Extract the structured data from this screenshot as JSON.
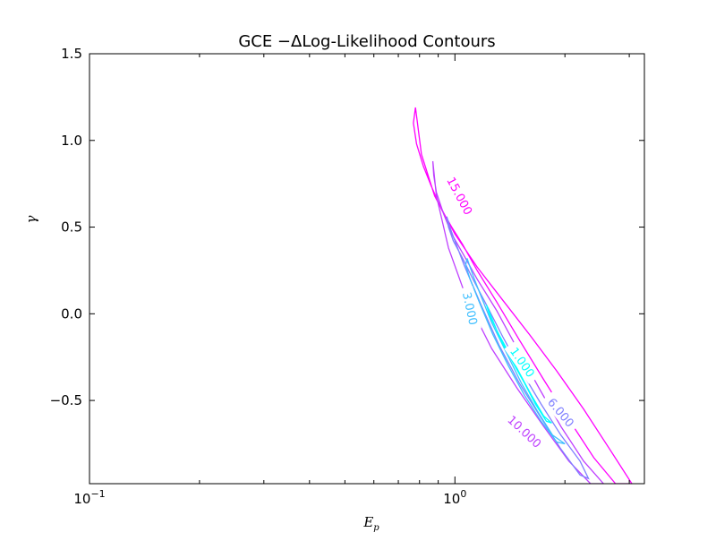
{
  "chart_data": {
    "type": "contour",
    "title": "GCE −ΔLog-Likelihood Contours",
    "xlabel": "E",
    "xlabel_sub": "p",
    "ylabel": "γ",
    "xscale": "log",
    "xlim": [
      0.1,
      3.3
    ],
    "ylim": [
      -0.98,
      1.5
    ],
    "xticks": [
      {
        "value": 0.1,
        "base": "10",
        "exp": "−1"
      },
      {
        "value": 1.0,
        "base": "10",
        "exp": "0"
      }
    ],
    "yticks": [
      {
        "value": 1.5,
        "label": "1.5"
      },
      {
        "value": 1.0,
        "label": "1.0"
      },
      {
        "value": 0.5,
        "label": "0.5"
      },
      {
        "value": 0.0,
        "label": "0.0"
      },
      {
        "value": -0.5,
        "label": "−0.5"
      }
    ],
    "grid": false,
    "levels": [
      {
        "level": "15.000",
        "color": "#ff00ff",
        "label": "15.000",
        "label_at": {
          "x": 1.03,
          "y": 0.68,
          "angle": 62
        },
        "x": [
          0.78,
          0.77,
          0.785,
          0.82,
          0.86,
          0.92,
          0.98,
          1.05,
          1.15,
          1.3,
          1.5,
          1.75,
          2.05,
          2.4,
          2.75,
          3.05,
          2.65,
          2.25,
          1.9,
          1.6,
          1.35,
          1.15,
          1.0,
          0.88,
          0.81,
          0.78
        ],
        "y": [
          1.19,
          1.1,
          0.98,
          0.85,
          0.74,
          0.6,
          0.5,
          0.4,
          0.25,
          0.07,
          -0.15,
          -0.38,
          -0.61,
          -0.83,
          -0.98,
          -0.98,
          -0.78,
          -0.55,
          -0.33,
          -0.12,
          0.08,
          0.27,
          0.46,
          0.68,
          0.92,
          1.19
        ]
      },
      {
        "level": "10.000",
        "color": "#bf40ff",
        "label": "10.000",
        "label_at": {
          "x": 1.55,
          "y": -0.68,
          "angle": 43
        },
        "x": [
          0.87,
          0.875,
          0.89,
          0.93,
          0.98,
          1.05,
          1.15,
          1.3,
          1.48,
          1.7,
          1.95,
          2.25,
          2.55,
          2.35,
          2.05,
          1.75,
          1.48,
          1.26,
          1.08,
          0.96,
          0.89,
          0.87
        ],
        "y": [
          0.88,
          0.8,
          0.7,
          0.58,
          0.46,
          0.35,
          0.2,
          0.02,
          -0.2,
          -0.43,
          -0.65,
          -0.85,
          -0.98,
          -0.98,
          -0.85,
          -0.65,
          -0.43,
          -0.2,
          0.08,
          0.38,
          0.68,
          0.88
        ]
      },
      {
        "level": "6.000",
        "color": "#7f7fff",
        "label": "6.000",
        "label_at": {
          "x": 1.95,
          "y": -0.57,
          "angle": 50
        },
        "x": [
          0.95,
          0.96,
          0.99,
          1.05,
          1.12,
          1.22,
          1.35,
          1.52,
          1.72,
          1.95,
          2.2,
          2.32,
          2.2,
          1.95,
          1.72,
          1.5,
          1.32,
          1.18,
          1.06,
          0.98,
          0.95
        ],
        "y": [
          0.56,
          0.5,
          0.42,
          0.32,
          0.2,
          0.05,
          -0.13,
          -0.33,
          -0.52,
          -0.7,
          -0.85,
          -0.95,
          -0.93,
          -0.78,
          -0.6,
          -0.4,
          -0.18,
          0.05,
          0.28,
          0.47,
          0.56
        ]
      },
      {
        "level": "3.000",
        "color": "#3fbfff",
        "label": "3.000",
        "label_at": {
          "x": 1.1,
          "y": 0.03,
          "angle": 78
        },
        "x": [
          1.08,
          1.1,
          1.13,
          1.18,
          1.26,
          1.38,
          1.52,
          1.68,
          1.85,
          2.0,
          1.9,
          1.72,
          1.55,
          1.4,
          1.27,
          1.17,
          1.1,
          1.07,
          1.08
        ],
        "y": [
          0.32,
          0.27,
          0.2,
          0.1,
          -0.05,
          -0.22,
          -0.4,
          -0.56,
          -0.7,
          -0.75,
          -0.74,
          -0.62,
          -0.47,
          -0.3,
          -0.12,
          0.06,
          0.2,
          0.28,
          0.32
        ]
      },
      {
        "level": "1.000",
        "color": "#00ffff",
        "label": "1.000",
        "label_at": {
          "x": 1.53,
          "y": -0.28,
          "angle": 55
        },
        "x": [
          1.22,
          1.25,
          1.32,
          1.4,
          1.5,
          1.62,
          1.75,
          1.84,
          1.78,
          1.66,
          1.55,
          1.44,
          1.34,
          1.27,
          1.22
        ],
        "y": [
          0.05,
          -0.02,
          -0.12,
          -0.22,
          -0.34,
          -0.47,
          -0.59,
          -0.63,
          -0.62,
          -0.52,
          -0.4,
          -0.28,
          -0.16,
          -0.04,
          0.05
        ]
      }
    ]
  }
}
